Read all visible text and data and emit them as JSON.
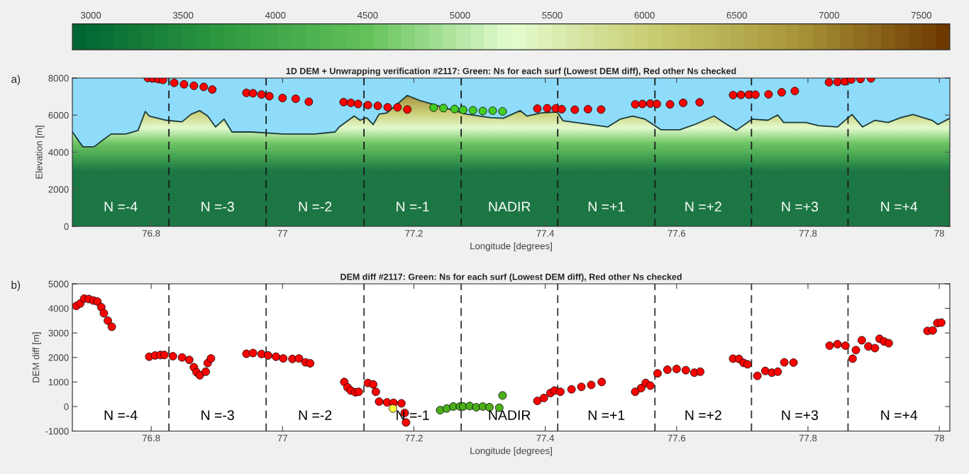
{
  "chart_data": [
    {
      "type": "area",
      "title": "1D DEM + Unwrapping verification #2117: Green: Ns for each surf (Lowest DEM diff), Red other Ns checked",
      "xlabel": "Longitude [degrees]",
      "ylabel": "Elevation [m]",
      "xlim": [
        76.68,
        78.016
      ],
      "ylim": [
        0,
        8000
      ],
      "xticks": [
        76.8,
        77,
        77.2,
        77.4,
        77.6,
        77.8,
        78
      ],
      "yticks": [
        0,
        2000,
        4000,
        6000,
        8000
      ],
      "clim": [
        2900,
        7654
      ],
      "cticks": [
        3000,
        3500,
        4000,
        4500,
        5000,
        5500,
        6000,
        6500,
        7000,
        7500
      ],
      "grid": false,
      "legend": false,
      "series": [
        {
          "type": "area",
          "color": "#1c3a3a",
          "x": [
            76.68,
            76.696,
            76.713,
            76.727,
            76.739,
            76.761,
            76.78,
            76.791,
            76.797,
            76.823,
            76.847,
            76.861,
            76.874,
            76.886,
            76.898,
            76.911,
            76.923,
            76.953,
            77.001,
            77.049,
            77.08,
            77.087,
            77.109,
            77.118,
            77.128,
            77.138,
            77.147,
            77.159,
            77.19,
            77.208,
            77.28,
            77.317,
            77.336,
            77.362,
            77.372,
            77.394,
            77.418,
            77.427,
            77.495,
            77.514,
            77.533,
            77.552,
            77.576,
            77.605,
            77.629,
            77.657,
            77.672,
            77.691,
            77.715,
            77.739,
            77.754,
            77.763,
            77.797,
            77.816,
            77.845,
            77.867,
            77.883,
            77.902,
            77.922,
            77.941,
            77.96,
            77.989,
            77.998,
            78.016
          ],
          "values": [
            5090,
            4290,
            4290,
            4670,
            4980,
            4980,
            5170,
            6200,
            5950,
            5720,
            5640,
            6050,
            6240,
            5950,
            5360,
            5780,
            5090,
            5090,
            4980,
            4980,
            5090,
            5380,
            5950,
            5720,
            5860,
            5490,
            6050,
            6120,
            7060,
            6800,
            6050,
            5860,
            5830,
            6240,
            5950,
            6120,
            6170,
            5700,
            5360,
            5780,
            5950,
            5780,
            5210,
            5210,
            5510,
            5950,
            5600,
            5180,
            5780,
            5720,
            6010,
            5600,
            5600,
            5430,
            5360,
            6030,
            5360,
            5720,
            5600,
            5860,
            6030,
            5720,
            5490,
            5830
          ]
        },
        {
          "type": "scatter",
          "marker": "circle",
          "color": "#ff0000",
          "x": [
            76.795,
            76.803,
            76.811,
            76.818,
            76.835,
            76.85,
            76.865,
            76.88,
            76.893,
            76.945,
            76.955,
            76.968,
            76.98,
            77.0,
            77.02,
            77.04,
            77.093,
            77.104,
            77.115,
            77.13,
            77.145,
            77.16,
            77.175,
            77.19,
            77.388,
            77.403,
            77.416,
            77.425,
            77.445,
            77.465,
            77.485,
            77.537,
            77.548,
            77.56,
            77.57,
            77.59,
            77.61,
            77.635,
            77.686,
            77.698,
            77.71,
            77.72,
            77.74,
            77.76,
            77.78,
            77.832,
            77.845,
            77.856,
            77.866,
            77.88,
            77.896
          ],
          "values": [
            8000,
            7980,
            7940,
            7900,
            7740,
            7660,
            7580,
            7520,
            7380,
            7200,
            7180,
            7110,
            7020,
            6920,
            6880,
            6720,
            6700,
            6660,
            6600,
            6540,
            6500,
            6420,
            6420,
            6300,
            6350,
            6370,
            6360,
            6320,
            6290,
            6320,
            6300,
            6580,
            6600,
            6620,
            6600,
            6580,
            6660,
            6690,
            7080,
            7090,
            7100,
            7100,
            7120,
            7230,
            7300,
            7770,
            7790,
            7820,
            7920,
            7950,
            7980
          ]
        },
        {
          "type": "scatter",
          "marker": "circle",
          "color": "#44cc22",
          "x": [
            77.23,
            77.245,
            77.262,
            77.275,
            77.29,
            77.305,
            77.32,
            77.335
          ],
          "values": [
            6400,
            6380,
            6330,
            6280,
            6260,
            6220,
            6240,
            6200
          ]
        }
      ],
      "ref_lines": [
        {
          "axis": "x",
          "value": 76.827,
          "line_style": "dashed",
          "color": "#1a1a1a"
        },
        {
          "axis": "x",
          "value": 76.975,
          "line_style": "dashed",
          "color": "#1a1a1a"
        },
        {
          "axis": "x",
          "value": 77.124,
          "line_style": "dashed",
          "color": "#1a1a1a"
        },
        {
          "axis": "x",
          "value": 77.272,
          "line_style": "dashed",
          "color": "#1a1a1a"
        },
        {
          "axis": "x",
          "value": 77.419,
          "line_style": "dashed",
          "color": "#1a1a1a"
        },
        {
          "axis": "x",
          "value": 77.567,
          "line_style": "dashed",
          "color": "#1a1a1a"
        },
        {
          "axis": "x",
          "value": 77.714,
          "line_style": "dashed",
          "color": "#1a1a1a"
        },
        {
          "axis": "x",
          "value": 77.861,
          "line_style": "dashed",
          "color": "#1a1a1a"
        }
      ],
      "annotations": [
        "a)",
        "N =-4",
        "N =-3",
        "N =-2",
        "N =-1",
        "NADIR",
        "N =+1",
        "N =+2",
        "N =+3",
        "N =+4"
      ]
    },
    {
      "type": "scatter",
      "title": "DEM diff #2117: Green: Ns for each surf (Lowest DEM diff), Red other Ns checked",
      "xlabel": "Longitude [degrees]",
      "ylabel": "DEM diff [m]",
      "xlim": [
        76.68,
        78.016
      ],
      "ylim": [
        -1000,
        5000
      ],
      "xticks": [
        76.8,
        77,
        77.2,
        77.4,
        77.6,
        77.8,
        78
      ],
      "yticks": [
        -1000,
        0,
        1000,
        2000,
        3000,
        4000,
        5000
      ],
      "marker": "circle",
      "grid": false,
      "legend": false,
      "tick_labels": true,
      "series": [
        {
          "color": "#ff0000",
          "x": [
            76.686,
            76.692,
            76.698,
            76.705,
            76.712,
            76.718,
            76.724,
            76.728,
            76.734,
            76.74,
            76.797,
            76.806,
            76.814,
            76.82,
            76.833,
            76.847,
            76.858,
            76.865,
            76.869,
            76.874,
            76.883,
            76.886,
            76.891,
            76.945,
            76.955,
            76.968,
            76.978,
            76.99,
            77.001,
            77.015,
            77.025,
            77.035,
            77.042,
            77.094,
            77.099,
            77.104,
            77.111,
            77.116,
            77.13,
            77.138,
            77.142,
            77.147,
            77.159,
            77.169,
            77.181,
            77.186,
            77.188,
            77.388,
            77.398,
            77.408,
            77.414,
            77.423,
            77.44,
            77.455,
            77.47,
            77.486,
            77.537,
            77.546,
            77.553,
            77.56,
            77.571,
            77.586,
            77.6,
            77.614,
            77.627,
            77.636,
            77.686,
            77.695,
            77.702,
            77.708,
            77.723,
            77.735,
            77.745,
            77.754,
            77.764,
            77.778,
            77.833,
            77.845,
            77.857,
            77.868,
            77.873,
            77.882,
            77.892,
            77.902,
            77.909,
            77.916,
            77.923,
            77.982,
            77.99,
            77.997,
            78.003
          ],
          "values": [
            4100,
            4200,
            4400,
            4380,
            4320,
            4280,
            4050,
            3800,
            3500,
            3250,
            2030,
            2080,
            2100,
            2100,
            2050,
            2000,
            1900,
            1600,
            1400,
            1270,
            1420,
            1770,
            1960,
            2150,
            2180,
            2140,
            2080,
            2030,
            1960,
            1940,
            1960,
            1800,
            1760,
            1000,
            780,
            650,
            580,
            600,
            960,
            900,
            600,
            200,
            170,
            150,
            130,
            -260,
            -650,
            230,
            350,
            550,
            650,
            600,
            700,
            800,
            880,
            1000,
            600,
            750,
            960,
            850,
            1350,
            1500,
            1530,
            1480,
            1380,
            1420,
            1950,
            1940,
            1780,
            1720,
            1250,
            1450,
            1380,
            1420,
            1800,
            1790,
            2480,
            2540,
            2480,
            1950,
            2300,
            2700,
            2450,
            2380,
            2760,
            2650,
            2580,
            3080,
            3100,
            3400,
            3420
          ]
        },
        {
          "color": "#ffff40",
          "x": [
            77.168
          ],
          "values": [
            -80
          ]
        },
        {
          "color": "#4caf1a",
          "x": [
            77.24,
            77.25,
            77.26,
            77.27,
            77.275,
            77.285,
            77.295,
            77.305,
            77.315,
            77.33,
            77.335
          ],
          "values": [
            -150,
            -80,
            0,
            0,
            0,
            20,
            -30,
            0,
            -30,
            -50,
            450
          ]
        }
      ],
      "ref_lines": [
        {
          "axis": "x",
          "value": 76.827,
          "line_style": "dashed",
          "color": "#333333"
        },
        {
          "axis": "x",
          "value": 76.975,
          "line_style": "dashed",
          "color": "#333333"
        },
        {
          "axis": "x",
          "value": 77.124,
          "line_style": "dashed",
          "color": "#333333"
        },
        {
          "axis": "x",
          "value": 77.272,
          "line_style": "dashed",
          "color": "#333333"
        },
        {
          "axis": "x",
          "value": 77.419,
          "line_style": "dashed",
          "color": "#333333"
        },
        {
          "axis": "x",
          "value": 77.567,
          "line_style": "dashed",
          "color": "#333333"
        },
        {
          "axis": "x",
          "value": 77.714,
          "line_style": "dashed",
          "color": "#333333"
        },
        {
          "axis": "x",
          "value": 77.861,
          "line_style": "dashed",
          "color": "#333333"
        }
      ],
      "annotations": [
        "b)",
        "N =-4",
        "N =-3",
        "N =-2",
        "N =-1",
        "NADIR",
        "N =+1",
        "N =+2",
        "N =+3",
        "N =+4"
      ]
    }
  ]
}
